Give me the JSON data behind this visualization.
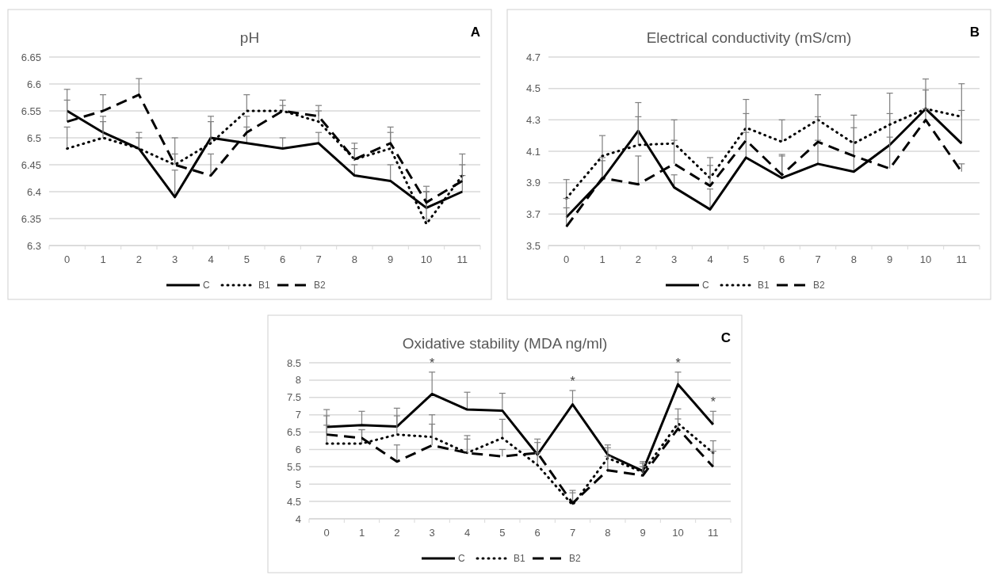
{
  "chart_data": [
    {
      "type": "line",
      "title": "pH",
      "annotations": [
        "A"
      ],
      "categories": [
        "0",
        "1",
        "2",
        "3",
        "4",
        "5",
        "6",
        "7",
        "8",
        "9",
        "10",
        "11"
      ],
      "ylim": [
        6.3,
        6.65
      ],
      "yticks": [
        6.3,
        6.35,
        6.4,
        6.45,
        6.5,
        6.55,
        6.6,
        6.65
      ],
      "grid": "y",
      "legend": "bottom",
      "marker": "none",
      "series": [
        {
          "name": "C",
          "color": "#000000",
          "line_style": "solid",
          "values": [
            6.55,
            6.51,
            6.48,
            6.39,
            6.5,
            6.49,
            6.48,
            6.49,
            6.43,
            6.42,
            6.37,
            6.4
          ],
          "errors": [
            [
              6.55,
              6.59
            ],
            [
              6.51,
              6.54
            ],
            [
              6.48,
              6.51
            ],
            [
              6.39,
              6.44
            ],
            [
              6.5,
              6.53
            ],
            [
              6.49,
              6.52
            ],
            [
              6.48,
              6.5
            ],
            [
              6.49,
              6.51
            ],
            [
              6.43,
              6.45
            ],
            [
              6.42,
              6.45
            ],
            [
              6.37,
              6.4
            ],
            [
              6.4,
              6.43
            ]
          ]
        },
        {
          "name": "B1",
          "color": "#000000",
          "line_style": "dotted",
          "values": [
            6.48,
            6.5,
            6.48,
            6.45,
            6.49,
            6.55,
            6.55,
            6.53,
            6.46,
            6.48,
            6.34,
            6.43
          ],
          "errors": [
            [
              6.48,
              6.52
            ],
            [
              6.5,
              6.53
            ],
            [
              6.48,
              6.5
            ],
            [
              6.45,
              6.5
            ],
            [
              6.49,
              6.54
            ],
            [
              6.55,
              6.58
            ],
            [
              6.55,
              6.57
            ],
            [
              6.53,
              6.56
            ],
            [
              6.46,
              6.49
            ],
            [
              6.48,
              6.51
            ],
            [
              6.34,
              6.4
            ],
            [
              6.43,
              6.47
            ]
          ]
        },
        {
          "name": "B2",
          "color": "#000000",
          "line_style": "dashed",
          "values": [
            6.53,
            6.55,
            6.58,
            6.45,
            6.43,
            6.51,
            6.55,
            6.54,
            6.46,
            6.49,
            6.38,
            6.42
          ],
          "errors": [
            [
              6.53,
              6.57
            ],
            [
              6.55,
              6.58
            ],
            [
              6.58,
              6.61
            ],
            [
              6.45,
              6.47
            ],
            [
              6.43,
              6.47
            ],
            [
              6.51,
              6.54
            ],
            [
              6.55,
              6.56
            ],
            [
              6.54,
              6.55
            ],
            [
              6.46,
              6.48
            ],
            [
              6.49,
              6.52
            ],
            [
              6.38,
              6.41
            ],
            [
              6.42,
              6.45
            ]
          ]
        }
      ]
    },
    {
      "type": "line",
      "title": "Electrical conductivity (mS/cm)",
      "annotations": [
        "B"
      ],
      "categories": [
        "0",
        "1",
        "2",
        "3",
        "4",
        "5",
        "6",
        "7",
        "8",
        "9",
        "10",
        "11"
      ],
      "ylim": [
        3.5,
        4.7
      ],
      "yticks": [
        3.5,
        3.7,
        3.9,
        4.1,
        4.3,
        4.5,
        4.7
      ],
      "grid": "y",
      "legend": "bottom",
      "marker": "none",
      "series": [
        {
          "name": "C",
          "color": "#000000",
          "line_style": "solid",
          "values": [
            3.68,
            3.92,
            4.23,
            3.87,
            3.73,
            4.06,
            3.93,
            4.02,
            3.97,
            4.14,
            4.37,
            4.15
          ],
          "errors": [
            [
              3.68,
              3.74
            ],
            [
              3.92,
              4.04
            ],
            [
              4.23,
              4.41
            ],
            [
              3.87,
              3.95
            ],
            [
              3.73,
              3.86
            ],
            [
              4.06,
              4.22
            ],
            [
              3.93,
              4.08
            ],
            [
              4.02,
              4.17
            ],
            [
              3.97,
              4.16
            ],
            [
              4.14,
              4.34
            ],
            [
              4.37,
              4.56
            ],
            [
              4.15,
              4.36
            ]
          ]
        },
        {
          "name": "B1",
          "color": "#000000",
          "line_style": "dotted",
          "values": [
            3.8,
            4.07,
            4.14,
            4.15,
            3.93,
            4.25,
            4.16,
            4.3,
            4.15,
            4.27,
            4.37,
            4.32
          ],
          "errors": [
            [
              3.8,
              3.92
            ],
            [
              4.07,
              4.2
            ],
            [
              4.14,
              4.32
            ],
            [
              4.15,
              4.3
            ],
            [
              3.93,
              4.06
            ],
            [
              4.25,
              4.43
            ],
            [
              4.16,
              4.3
            ],
            [
              4.3,
              4.46
            ],
            [
              4.15,
              4.33
            ],
            [
              4.27,
              4.47
            ],
            [
              4.37,
              4.49
            ],
            [
              4.32,
              4.53
            ]
          ]
        },
        {
          "name": "B2",
          "color": "#000000",
          "line_style": "dashed",
          "values": [
            3.62,
            3.93,
            3.89,
            4.02,
            3.88,
            4.17,
            3.95,
            4.16,
            4.07,
            3.99,
            4.3,
            3.97
          ],
          "errors": [
            [
              3.62,
              3.8
            ],
            [
              3.93,
              4.06
            ],
            [
              3.89,
              4.07
            ],
            [
              4.02,
              4.17
            ],
            [
              3.88,
              4.01
            ],
            [
              4.17,
              4.34
            ],
            [
              3.95,
              4.07
            ],
            [
              4.16,
              4.32
            ],
            [
              4.07,
              4.25
            ],
            [
              3.99,
              4.19
            ],
            [
              4.3,
              4.37
            ],
            [
              3.97,
              4.02
            ]
          ]
        }
      ]
    },
    {
      "type": "line",
      "title": "Oxidative stability (MDA ng/ml)",
      "annotations": [
        "C",
        {
          "text": "*",
          "x": "3",
          "y": 8.23
        },
        {
          "text": "*",
          "x": "7",
          "y": 7.7
        },
        {
          "text": "*",
          "x": "10",
          "y": 8.23
        },
        {
          "text": "*",
          "x": "11",
          "y": 7.1
        }
      ],
      "categories": [
        "0",
        "1",
        "2",
        "3",
        "4",
        "5",
        "6",
        "7",
        "8",
        "9",
        "10",
        "11"
      ],
      "ylim": [
        4,
        8.5
      ],
      "yticks": [
        4,
        4.5,
        5,
        5.5,
        6,
        6.5,
        7,
        7.5,
        8,
        8.5
      ],
      "grid": "y",
      "legend": "bottom",
      "marker": "none",
      "series": [
        {
          "name": "C",
          "color": "#000000",
          "line_style": "solid",
          "values": [
            6.65,
            6.7,
            6.66,
            7.6,
            7.15,
            7.12,
            5.85,
            7.3,
            5.85,
            5.38,
            7.88,
            6.72
          ],
          "errors": [
            [
              6.65,
              7.15
            ],
            [
              6.7,
              7.1
            ],
            [
              6.66,
              7.19
            ],
            [
              7.6,
              8.23
            ],
            [
              7.15,
              7.65
            ],
            [
              7.12,
              7.62
            ],
            [
              5.85,
              6.3
            ],
            [
              7.3,
              7.7
            ],
            [
              5.85,
              6.13
            ],
            [
              5.38,
              5.65
            ],
            [
              7.88,
              8.23
            ],
            [
              6.72,
              7.1
            ]
          ]
        },
        {
          "name": "B1",
          "color": "#000000",
          "line_style": "dotted",
          "values": [
            6.17,
            6.17,
            6.43,
            6.36,
            5.9,
            6.33,
            5.55,
            4.4,
            5.75,
            5.35,
            6.75,
            5.9
          ],
          "errors": [
            [
              6.17,
              6.7
            ],
            [
              6.17,
              6.57
            ],
            [
              6.43,
              6.97
            ],
            [
              6.36,
              7.0
            ],
            [
              5.9,
              6.4
            ],
            [
              6.33,
              6.87
            ],
            [
              5.55,
              5.9
            ],
            [
              4.4,
              4.82
            ],
            [
              5.75,
              6.05
            ],
            [
              5.35,
              5.6
            ],
            [
              6.75,
              7.17
            ],
            [
              5.9,
              6.25
            ]
          ]
        },
        {
          "name": "B2",
          "color": "#000000",
          "line_style": "dashed",
          "values": [
            6.43,
            6.33,
            5.65,
            6.12,
            5.9,
            5.8,
            5.9,
            4.45,
            5.4,
            5.25,
            6.6,
            5.5
          ],
          "errors": [
            [
              6.43,
              6.97
            ],
            [
              6.33,
              6.57
            ],
            [
              5.65,
              6.13
            ],
            [
              6.12,
              6.73
            ],
            [
              5.9,
              6.3
            ],
            [
              5.8,
              6.0
            ],
            [
              5.9,
              6.2
            ],
            [
              4.45,
              4.75
            ],
            [
              5.4,
              5.8
            ],
            [
              5.25,
              5.5
            ],
            [
              6.6,
              6.88
            ],
            [
              5.5,
              5.95
            ]
          ]
        }
      ]
    }
  ]
}
